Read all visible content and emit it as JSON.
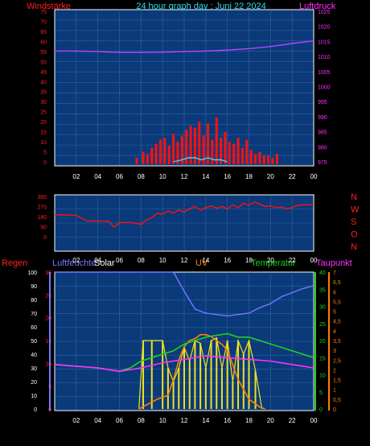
{
  "header": {
    "left_label": "Windstärke",
    "title": "24 hour graph day : Juni 22 2024",
    "right_label": "Luftdruck"
  },
  "colors": {
    "background": "#000000",
    "plot_bg": "#0a3a7a",
    "grid": "#5a86c0",
    "wind": "#ff1010",
    "gust": "#33ddff",
    "pressure": "#c040ff",
    "humidity": "#7878ff",
    "solar": "#f0e020",
    "uv": "#ff8000",
    "temperature": "#20d020",
    "dewpoint": "#ff30ff",
    "rain": "#ff2020",
    "title": "#20e0ff"
  },
  "panel1": {
    "left_ticks": [
      "0",
      "5",
      "10",
      "15",
      "20",
      "25",
      "30",
      "35",
      "40",
      "45",
      "50",
      "55",
      "60",
      "65",
      "70",
      "75"
    ],
    "right_ticks": [
      "975",
      "980",
      "985",
      "990",
      "995",
      "1000",
      "1005",
      "1010",
      "1015",
      "1020",
      "1025"
    ],
    "x_ticks": [
      "02",
      "04",
      "06",
      "08",
      "10",
      "12",
      "14",
      "16",
      "18",
      "20",
      "22",
      "00"
    ]
  },
  "panel2": {
    "left_ticks": [
      "0",
      "90",
      "180",
      "270",
      "360"
    ],
    "compass": [
      "N",
      "W",
      "S",
      "O",
      "N"
    ],
    "x_ticks": [
      "02",
      "04",
      "06",
      "08",
      "10",
      "12",
      "14",
      "16",
      "18",
      "20",
      "22",
      "00"
    ]
  },
  "panel3": {
    "labels": {
      "rain": "Regen",
      "humidity": "Luftfeuchte",
      "solar": "Solar",
      "uv": "UV",
      "temperature": "Temperatur",
      "dewpoint": "Taupunkt"
    },
    "humidity_ticks": [
      "0",
      "10",
      "20",
      "30",
      "40",
      "50",
      "60",
      "70",
      "80",
      "90",
      "100"
    ],
    "rain_ticks": [
      "0",
      "5",
      "10",
      "15",
      "20",
      "25",
      "30"
    ],
    "temp_ticks": [
      "0",
      "5",
      "10",
      "15",
      "20",
      "25",
      "30",
      "35",
      "40"
    ],
    "uv_ticks": [
      "0",
      "0,5",
      "1",
      "1,5",
      "2",
      "2,5",
      "3",
      "3,5",
      "4",
      "4,5",
      "5",
      "5,5",
      "6",
      "6,5",
      "7"
    ],
    "x_ticks": [
      "02",
      "04",
      "06",
      "08",
      "10",
      "12",
      "14",
      "16",
      "18",
      "20",
      "22",
      "00"
    ]
  },
  "chart_data": [
    {
      "type": "line",
      "title": "24 hour graph day : Juni 22 2024",
      "ylabel": "Windstärke",
      "y2label": "Luftdruck",
      "ylim": [
        0,
        75
      ],
      "y2lim": [
        975,
        1025
      ],
      "x_hours": [
        0,
        24
      ],
      "series": [
        {
          "name": "Windstärke",
          "axis": "left",
          "style": "bars",
          "x": [
            7.6,
            8.2,
            8.6,
            9.0,
            9.4,
            9.8,
            10.2,
            10.6,
            11.0,
            11.4,
            11.8,
            12.2,
            12.6,
            13.0,
            13.4,
            13.8,
            14.2,
            14.6,
            15.0,
            15.4,
            15.8,
            16.2,
            16.6,
            17.0,
            17.4,
            17.8,
            18.2,
            18.6,
            19.0,
            19.4,
            19.8,
            20.2,
            20.6
          ],
          "y": [
            2,
            5,
            4,
            7,
            9,
            11,
            12,
            8,
            14,
            10,
            13,
            16,
            18,
            17,
            20,
            13,
            19,
            11,
            22,
            12,
            15,
            10,
            9,
            12,
            7,
            11,
            6,
            4,
            5,
            3,
            3,
            2,
            4
          ]
        },
        {
          "name": "Böen",
          "axis": "left",
          "style": "line",
          "x": [
            11.0,
            11.8,
            12.4,
            13.0,
            13.6,
            14.2,
            14.8,
            15.4,
            16.0
          ],
          "y": [
            0,
            1,
            2,
            2,
            1,
            2,
            1,
            1,
            0
          ]
        },
        {
          "name": "Luftdruck",
          "axis": "right",
          "x": [
            0,
            2,
            4,
            6,
            8,
            10,
            12,
            14,
            16,
            18,
            20,
            22,
            24
          ],
          "y": [
            1011.8,
            1011.8,
            1011.6,
            1011.3,
            1011.3,
            1011.4,
            1011.6,
            1011.8,
            1012.1,
            1012.6,
            1013.3,
            1014.3,
            1015.2
          ]
        }
      ]
    },
    {
      "type": "line",
      "ylabel": "Windrichtung",
      "ylim": [
        0,
        360
      ],
      "series": [
        {
          "name": "Windrichtung",
          "x": [
            0,
            1,
            2,
            3,
            4,
            5,
            5.5,
            6,
            6.5,
            7,
            8,
            8.5,
            9,
            9.5,
            10,
            10.5,
            11,
            11.5,
            12,
            12.5,
            13,
            13.5,
            14,
            14.5,
            15,
            15.5,
            16,
            16.5,
            17,
            17.5,
            18,
            18.5,
            19,
            19.5,
            20,
            20.5,
            21,
            21.5,
            22,
            22.5,
            23,
            24
          ],
          "y": [
            195,
            195,
            190,
            140,
            140,
            138,
            85,
            128,
            125,
            128,
            110,
            150,
            170,
            210,
            200,
            230,
            210,
            240,
            220,
            250,
            270,
            240,
            260,
            275,
            255,
            270,
            250,
            285,
            260,
            300,
            280,
            310,
            290,
            270,
            275,
            260,
            265,
            250,
            260,
            280,
            285,
            285
          ]
        }
      ]
    },
    {
      "type": "line",
      "series": [
        {
          "name": "Luftfeuchte",
          "axis": "humidity",
          "ylim": [
            0,
            100
          ],
          "x": [
            0,
            2,
            4,
            6,
            8,
            9,
            10,
            11,
            12,
            13,
            14,
            15,
            16,
            17,
            18,
            19,
            20,
            21,
            22,
            23,
            24
          ],
          "y": [
            100,
            100,
            100,
            100,
            100,
            100,
            100,
            100,
            86,
            73,
            70,
            69,
            68,
            69,
            70,
            74,
            77,
            82,
            85,
            88,
            90
          ]
        },
        {
          "name": "Solar",
          "style": "bars",
          "axis": "humidity",
          "ylim": [
            0,
            100
          ],
          "x": [
            7.8,
            8.2,
            9,
            10,
            10.5,
            11,
            11.5,
            12,
            12.5,
            13,
            13.5,
            14,
            14.5,
            15,
            15.5,
            16,
            16.5,
            17,
            17.5,
            18,
            18.6,
            19.2
          ],
          "y": [
            0,
            50,
            50,
            50,
            30,
            20,
            30,
            45,
            35,
            50,
            48,
            30,
            50,
            52,
            30,
            50,
            20,
            50,
            40,
            50,
            28,
            0
          ]
        },
        {
          "name": "UV",
          "axis": "uv",
          "ylim": [
            0,
            7
          ],
          "x": [
            7.8,
            8.5,
            9.5,
            10.5,
            11,
            11.5,
            12,
            12.5,
            13,
            13.5,
            14,
            14.5,
            15,
            15.5,
            16,
            17,
            18,
            18.5,
            19,
            19.5
          ],
          "y": [
            0,
            0.2,
            0.5,
            0.7,
            1.5,
            2.5,
            3.2,
            3.5,
            3.6,
            3.8,
            3.8,
            3.7,
            3.5,
            3.3,
            3,
            1.5,
            0.5,
            0.3,
            0.1,
            0
          ]
        },
        {
          "name": "Temperatur",
          "axis": "temp",
          "ylim": [
            0,
            40
          ],
          "x": [
            0,
            2,
            4,
            6,
            7,
            8,
            9,
            10,
            11,
            12,
            13,
            14,
            15,
            16,
            17,
            18,
            19,
            20,
            21,
            22,
            23,
            24
          ],
          "y": [
            13,
            12.5,
            12,
            11,
            12,
            14,
            15,
            16,
            17,
            19,
            20,
            21,
            21.5,
            22,
            21,
            21,
            20,
            19,
            18,
            17,
            16,
            15
          ]
        },
        {
          "name": "Taupunkt",
          "axis": "temp",
          "ylim": [
            0,
            40
          ],
          "x": [
            0,
            2,
            4,
            6,
            8,
            10,
            12,
            14,
            16,
            18,
            20,
            22,
            24
          ],
          "y": [
            13,
            12.5,
            12,
            11,
            12,
            13.5,
            14.5,
            15.5,
            15,
            14.5,
            14,
            13,
            12
          ]
        }
      ]
    }
  ]
}
